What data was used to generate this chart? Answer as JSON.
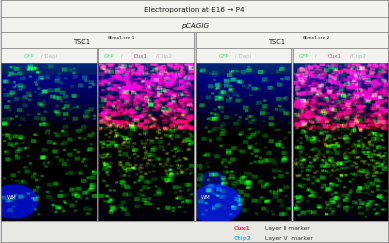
{
  "title_top": "Electroporation at E16 → P4",
  "title_vector": "pCAGIG",
  "group_superscript": "δEmx1-cre",
  "panel1_label_parts": [
    {
      "text": "GFP",
      "color": "#44dd88"
    },
    {
      "text": " / Dapi",
      "color": "#bbbbbb"
    }
  ],
  "panel2_label_parts": [
    {
      "text": "GFP",
      "color": "#44dd88"
    },
    {
      "text": " / ",
      "color": "#bbbbbb"
    },
    {
      "text": "Cux1",
      "color": "#ff4488"
    },
    {
      "text": " /Ctip2",
      "color": "#bbbbbb"
    }
  ],
  "panel3_label_parts": [
    {
      "text": "GFP",
      "color": "#44dd88"
    },
    {
      "text": " / Dapi",
      "color": "#bbbbbb"
    }
  ],
  "panel4_label_parts": [
    {
      "text": "GFP",
      "color": "#44dd88"
    },
    {
      "text": " / ",
      "color": "#bbbbbb"
    },
    {
      "text": "Cux1",
      "color": "#ff4488"
    },
    {
      "text": " /Ctip2",
      "color": "#bbbbbb"
    }
  ],
  "legend_cux1_text": "Cux1",
  "legend_cux1_color": "#ff4040",
  "legend_cux1_rest": " Layer Ⅱ marker",
  "legend_ctip2_text": "Ctip2",
  "legend_ctip2_color": "#44bbff",
  "legend_ctip2_rest": " Layer V  marker",
  "wm_text": "WM",
  "header_bg": "#f2f2ee",
  "header_border": "#888888",
  "fig_bg": "#d8d8d8",
  "bottom_bg": "#e8e8e4"
}
